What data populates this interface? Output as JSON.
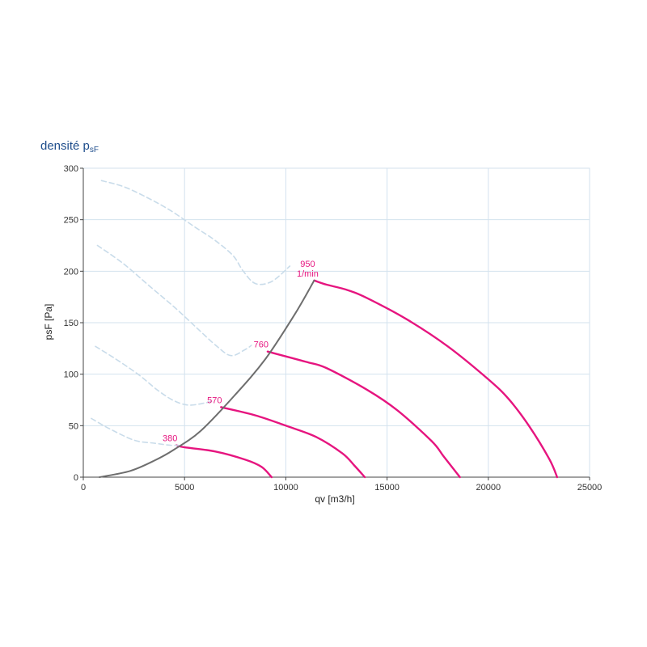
{
  "chart_data": {
    "type": "line",
    "title_main": "densité p",
    "title_sub": "sF",
    "xlabel": "qv [m3/h]",
    "ylabel": "psF [Pa]",
    "xlim": [
      0,
      25000
    ],
    "ylim": [
      0,
      300
    ],
    "xticks": [
      "0",
      "5000",
      "10000",
      "15000",
      "20000",
      "25000"
    ],
    "yticks": [
      "0",
      "50",
      "100",
      "150",
      "200",
      "250",
      "300"
    ],
    "grid": true,
    "colors": {
      "speed_curve": "#e6157f",
      "system_curve": "#6e6e6e",
      "stall_curve": "#c9dcea",
      "grid": "#d3e2ee",
      "title": "#1f4e8c"
    },
    "series": [
      {
        "kind": "speed",
        "label_lines": [
          "380"
        ],
        "points": [
          [
            4600,
            31
          ],
          [
            5000,
            29
          ],
          [
            6500,
            25
          ],
          [
            8000,
            17
          ],
          [
            8800,
            10
          ],
          [
            9300,
            0
          ]
        ]
      },
      {
        "kind": "speed",
        "label_lines": [
          "570"
        ],
        "points": [
          [
            6800,
            68
          ],
          [
            8500,
            60
          ],
          [
            10000,
            50
          ],
          [
            11500,
            39
          ],
          [
            12800,
            23
          ],
          [
            13400,
            11
          ],
          [
            13900,
            0
          ]
        ]
      },
      {
        "kind": "speed",
        "label_lines": [
          "760"
        ],
        "points": [
          [
            9100,
            122
          ],
          [
            11000,
            112
          ],
          [
            12000,
            106
          ],
          [
            14000,
            85
          ],
          [
            15500,
            65
          ],
          [
            17200,
            35
          ],
          [
            17800,
            20
          ],
          [
            18600,
            0
          ]
        ]
      },
      {
        "kind": "speed",
        "label_lines": [
          "950",
          "1/min"
        ],
        "points": [
          [
            11400,
            191
          ],
          [
            12000,
            187
          ],
          [
            13000,
            182
          ],
          [
            14000,
            174
          ],
          [
            16000,
            153
          ],
          [
            18000,
            127
          ],
          [
            20000,
            95
          ],
          [
            21000,
            76
          ],
          [
            22000,
            50
          ],
          [
            23000,
            18
          ],
          [
            23400,
            0
          ]
        ]
      },
      {
        "kind": "system",
        "label_lines": [],
        "points": [
          [
            800,
            0
          ],
          [
            2300,
            6
          ],
          [
            3500,
            16
          ],
          [
            4500,
            27
          ],
          [
            5800,
            45
          ],
          [
            7500,
            80
          ],
          [
            9000,
            115
          ],
          [
            10500,
            160
          ],
          [
            11400,
            191
          ]
        ]
      },
      {
        "kind": "stall",
        "label_lines": [],
        "points": [
          [
            900,
            288
          ],
          [
            2000,
            282
          ],
          [
            3200,
            271
          ],
          [
            4300,
            259
          ],
          [
            5500,
            243
          ],
          [
            6500,
            230
          ],
          [
            7400,
            215
          ],
          [
            7900,
            200
          ],
          [
            8500,
            188
          ],
          [
            9300,
            190
          ],
          [
            10200,
            205
          ]
        ]
      },
      {
        "kind": "stall",
        "label_lines": [],
        "points": [
          [
            700,
            225
          ],
          [
            2000,
            207
          ],
          [
            3300,
            185
          ],
          [
            4500,
            165
          ],
          [
            5600,
            145
          ],
          [
            6600,
            127
          ],
          [
            7300,
            118
          ],
          [
            8000,
            124
          ],
          [
            8300,
            128
          ]
        ]
      },
      {
        "kind": "stall",
        "label_lines": [],
        "points": [
          [
            600,
            127
          ],
          [
            1500,
            116
          ],
          [
            2700,
            100
          ],
          [
            3700,
            84
          ],
          [
            4500,
            74
          ],
          [
            5200,
            70
          ],
          [
            6000,
            72
          ],
          [
            6400,
            74
          ]
        ]
      },
      {
        "kind": "stall",
        "label_lines": [],
        "points": [
          [
            400,
            57
          ],
          [
            1200,
            48
          ],
          [
            2500,
            36
          ],
          [
            3500,
            33
          ],
          [
            4300,
            31
          ],
          [
            4700,
            31
          ]
        ]
      }
    ]
  }
}
